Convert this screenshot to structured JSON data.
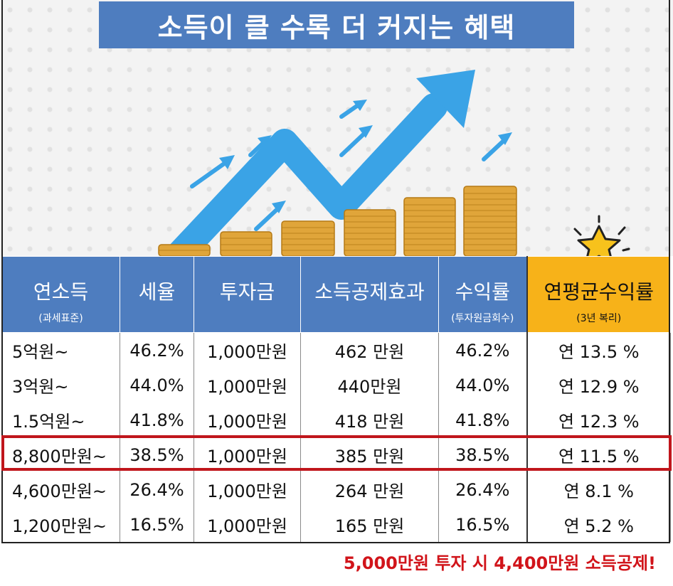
{
  "title": "소득이 클 수록 더 커지는 혜택",
  "icons": {
    "trend": "rising-arrow-icon",
    "coins": "coin-stack-icon",
    "star": "star-icon"
  },
  "colors": {
    "header_blue": "#4e7dbf",
    "header_gold": "#f7b219",
    "highlight_red": "#c0161c",
    "arrow_blue": "#3aa3e6"
  },
  "table": {
    "headers": [
      {
        "main": "연소득",
        "sub": "(과세표준)"
      },
      {
        "main": "세율",
        "sub": ""
      },
      {
        "main": "투자금",
        "sub": ""
      },
      {
        "main": "소득공제효과",
        "sub": ""
      },
      {
        "main": "수익률",
        "sub": "(투자원금회수)"
      },
      {
        "main": "연평균수익률",
        "sub": "(3년 복리)"
      }
    ],
    "rows": [
      [
        "5억원~",
        "46.2%",
        "1,000만원",
        "462 만원",
        "46.2%",
        "연 13.5 %"
      ],
      [
        "3억원~",
        "44.0%",
        "1,000만원",
        "440만원",
        "44.0%",
        "연 12.9 %"
      ],
      [
        "1.5억원~",
        "41.8%",
        "1,000만원",
        "418 만원",
        "41.8%",
        "연 12.3 %"
      ],
      [
        "8,800만원~",
        "38.5%",
        "1,000만원",
        "385 만원",
        "38.5%",
        "연 11.5 %"
      ],
      [
        "4,600만원~",
        "26.4%",
        "1,000만원",
        "264 만원",
        "26.4%",
        "연 8.1 %"
      ],
      [
        "1,200만원~",
        "16.5%",
        "1,000만원",
        "165 만원",
        "16.5%",
        "연 5.2 %"
      ]
    ]
  },
  "footnote": "5,000만원 투자 시 4,400만원 소득공제!"
}
